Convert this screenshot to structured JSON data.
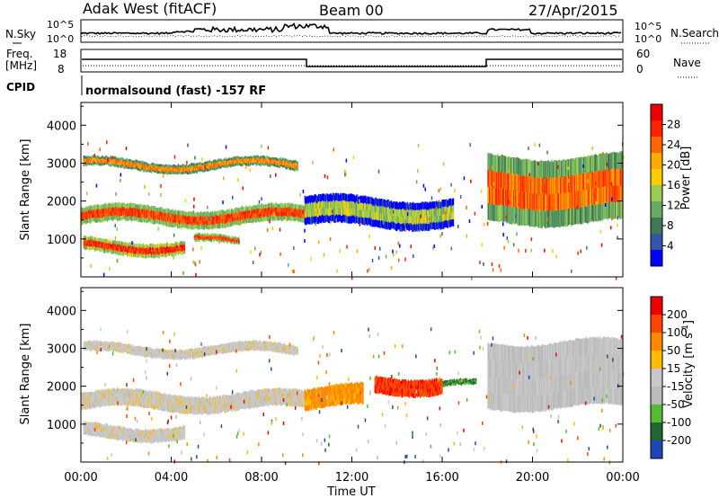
{
  "header": {
    "station": "Adak West (fitACF)",
    "beam": "Beam 00",
    "date": "27/Apr/2015"
  },
  "noise_panel": {
    "left_label": "N.Sky",
    "right_label": "N.Search",
    "left_ticks": [
      "10^5",
      "10^0"
    ],
    "right_ticks": [
      "10^5",
      "10^0"
    ]
  },
  "freq_panel": {
    "left_label_1": "Freq.",
    "left_label_2": "[MHz]",
    "right_label": "Nave",
    "left_ticks": [
      "18",
      "8"
    ],
    "right_ticks": [
      "60",
      "0"
    ]
  },
  "cpid": {
    "label": "CPID",
    "text": "normalsound (fast) -157 RF"
  },
  "colors": {
    "power_scale": [
      "#0000ff",
      "#3355aa",
      "#447755",
      "#66aa66",
      "#99cc55",
      "#ffcc00",
      "#ffaa00",
      "#ff6600",
      "#ff2200",
      "#ee0000"
    ],
    "velocity_scale": [
      "#2244bb",
      "#226633",
      "#55bb33",
      "#bbbbbb",
      "#c8c8c8",
      "#ffbb00",
      "#ff8800",
      "#ff4400",
      "#ee0000"
    ]
  },
  "chart_data": [
    {
      "type": "heatmap",
      "name": "power",
      "ylabel": "Slant Range [km]",
      "yticks": [
        "1000",
        "2000",
        "3000",
        "4000"
      ],
      "ylim": [
        0,
        4600
      ],
      "colorbar_label": "Power [dB]",
      "colorbar_ticks": [
        "4",
        "8",
        "12",
        "16",
        "20",
        "24",
        "28"
      ],
      "bands": [
        {
          "t0": 0.0,
          "t1": 9.9,
          "r0": 1350,
          "r1": 1850,
          "level": 0.55
        },
        {
          "t0": 0.1,
          "t1": 9.6,
          "r0": 2800,
          "r1": 3100,
          "level": 0.45
        },
        {
          "t0": 0.1,
          "t1": 4.6,
          "r0": 600,
          "r1": 1000,
          "level": 0.6
        },
        {
          "t0": 5.0,
          "t1": 7.0,
          "r0": 800,
          "r1": 1050,
          "level": 0.55
        },
        {
          "t0": 9.9,
          "t1": 16.5,
          "r0": 1300,
          "r1": 2100,
          "level": 0.2
        },
        {
          "t0": 18.0,
          "t1": 24.0,
          "r0": 1400,
          "r1": 3200,
          "level": 0.5
        }
      ]
    },
    {
      "type": "heatmap",
      "name": "velocity",
      "xlabel": "Time UT",
      "xticks": [
        "00:00",
        "04:00",
        "08:00",
        "12:00",
        "16:00",
        "20:00",
        "00:00"
      ],
      "xlim": [
        0,
        24
      ],
      "ylabel": "Slant Range [km]",
      "yticks": [
        "1000",
        "2000",
        "3000",
        "4000"
      ],
      "ylim": [
        0,
        4600
      ],
      "colorbar_label": "Velocity [m s^-1]",
      "colorbar_ticks": [
        "200",
        "100",
        "50",
        "15",
        "-15",
        "-50",
        "-100",
        "-200"
      ],
      "bands": [
        {
          "t0": 0.0,
          "t1": 9.9,
          "r0": 1350,
          "r1": 1850,
          "level": 0.5
        },
        {
          "t0": 0.1,
          "t1": 9.6,
          "r0": 2800,
          "r1": 3100,
          "level": 0.5
        },
        {
          "t0": 0.1,
          "t1": 4.6,
          "r0": 600,
          "r1": 1000,
          "level": 0.5
        },
        {
          "t0": 9.9,
          "t1": 12.5,
          "r0": 1400,
          "r1": 2000,
          "level": 0.7
        },
        {
          "t0": 13.0,
          "t1": 16.0,
          "r0": 1800,
          "r1": 2300,
          "level": 0.85
        },
        {
          "t0": 16.0,
          "t1": 17.5,
          "r0": 1900,
          "r1": 2100,
          "level": 0.2
        },
        {
          "t0": 18.0,
          "t1": 24.0,
          "r0": 1400,
          "r1": 3200,
          "level": 0.45
        }
      ]
    }
  ],
  "axis_title": "Time UT"
}
